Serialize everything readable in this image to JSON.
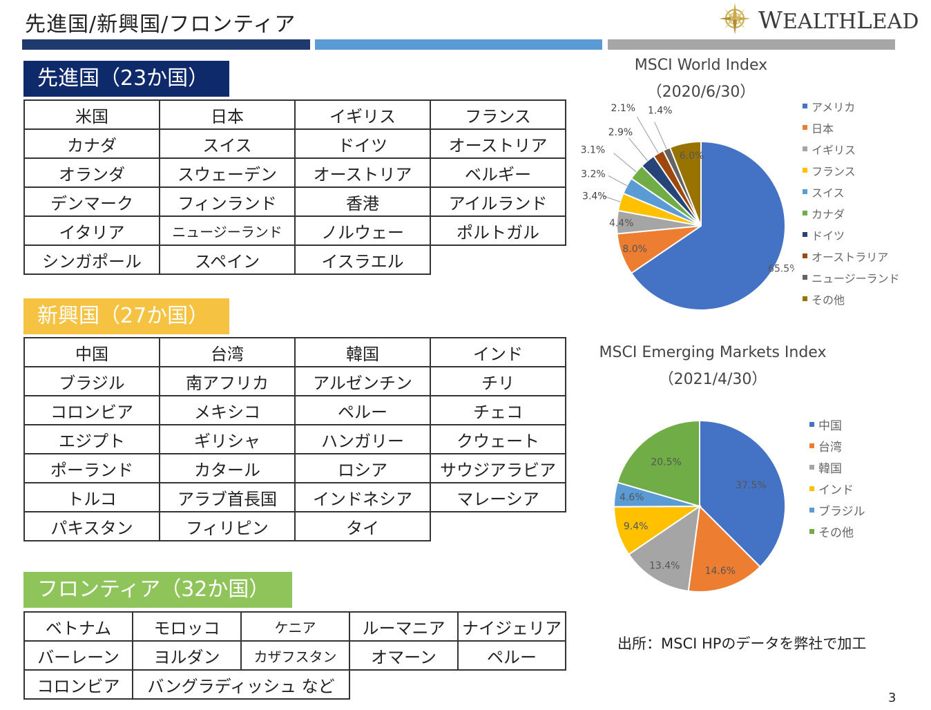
{
  "header": {
    "title": "先進国/新興国/フロンティア",
    "bar_colors": [
      "#1f3b6e",
      "#5b9bd5",
      "#a6a6a6"
    ],
    "logo_text_parts": [
      "W",
      "EALTH",
      "L",
      "EAD"
    ]
  },
  "developed": {
    "heading": "先進国（23か国）",
    "heading_bg": "#0f2a6b",
    "heading_color": "#ffffff",
    "rows": [
      [
        "米国",
        "日本",
        "イギリス",
        "フランス"
      ],
      [
        "カナダ",
        "スイス",
        "ドイツ",
        "オーストリア"
      ],
      [
        "オランダ",
        "スウェーデン",
        "オーストリア",
        "ベルギー"
      ],
      [
        "デンマーク",
        "フィンランド",
        "香港",
        "アイルランド"
      ],
      [
        "イタリア",
        "ニュージーランド",
        "ノルウェー",
        "ポルトガル"
      ],
      [
        "シンガポール",
        "スペイン",
        "イスラエル",
        ""
      ]
    ]
  },
  "emerging": {
    "heading": "新興国（27か国）",
    "heading_bg": "#f5c242",
    "heading_color": "#ffffff",
    "rows": [
      [
        "中国",
        "台湾",
        "韓国",
        "インド"
      ],
      [
        "ブラジル",
        "南アフリカ",
        "アルゼンチン",
        "チリ"
      ],
      [
        "コロンビア",
        "メキシコ",
        "ペルー",
        "チェコ"
      ],
      [
        "エジプト",
        "ギリシャ",
        "ハンガリー",
        "クウェート"
      ],
      [
        "ポーランド",
        "カタール",
        "ロシア",
        "サウジアラビア"
      ],
      [
        "トルコ",
        "アラブ首長国",
        "インドネシア",
        "マレーシア"
      ],
      [
        "パキスタン",
        "フィリピン",
        "タイ",
        ""
      ]
    ]
  },
  "frontier": {
    "heading": "フロンティア（32か国）",
    "heading_bg": "#8fc45a",
    "heading_color": "#ffffff",
    "rows": [
      [
        "ベトナム",
        "モロッコ",
        "ケニア",
        "ルーマニア",
        "ナイジェリア"
      ],
      [
        "バーレーン",
        "ヨルダン",
        "カザフスタン",
        "オマーン",
        "ペルー"
      ]
    ],
    "last_row": [
      "コロンビア",
      "バングラディッシュ など"
    ]
  },
  "chart_data": [
    {
      "type": "pie",
      "title": "MSCI World Index",
      "subtitle": "（2020/6/30）",
      "categories": [
        "アメリカ",
        "日本",
        "イギリス",
        "フランス",
        "スイス",
        "カナダ",
        "ドイツ",
        "オーストラリア",
        "ニュージーランド",
        "その他"
      ],
      "values": [
        65.5,
        8.0,
        4.4,
        3.4,
        3.2,
        3.1,
        2.9,
        2.1,
        1.4,
        6.0
      ],
      "labels": [
        "65.5%",
        "8.0%",
        "4.4%",
        "3.4%",
        "3.2%",
        "3.1%",
        "2.9%",
        "2.1%",
        "1.4%",
        "6.0%"
      ],
      "colors": [
        "#4472c4",
        "#ed7d31",
        "#a5a5a5",
        "#ffc000",
        "#5b9bd5",
        "#70ad47",
        "#264478",
        "#9e480e",
        "#636363",
        "#997300"
      ],
      "start_angle": 0,
      "legend": "right"
    },
    {
      "type": "pie",
      "title": "MSCI Emerging Markets Index",
      "subtitle": "（2021/4/30）",
      "categories": [
        "中国",
        "台湾",
        "韓国",
        "インド",
        "ブラジル",
        "その他"
      ],
      "values": [
        37.5,
        14.6,
        13.4,
        9.4,
        4.6,
        20.5
      ],
      "labels": [
        "37.5%",
        "14.6%",
        "13.4%",
        "9.4%",
        "4.6%",
        "20.5%"
      ],
      "colors": [
        "#4472c4",
        "#ed7d31",
        "#a5a5a5",
        "#ffc000",
        "#5b9bd5",
        "#70ad47"
      ],
      "start_angle": 0,
      "legend": "right"
    }
  ],
  "source_note": "出所：MSCI HPのデータを弊社で加工",
  "page_number": "3"
}
